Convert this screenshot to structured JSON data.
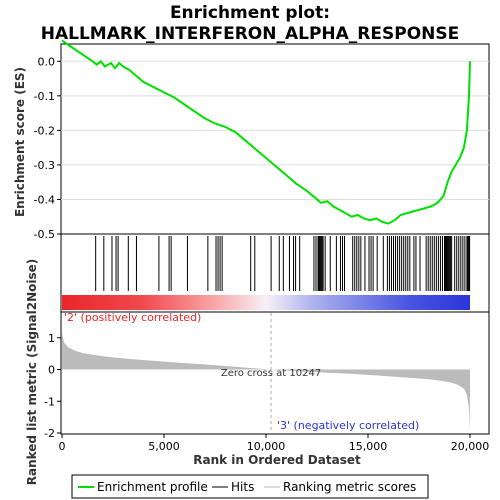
{
  "title_line1": "Enrichment plot:",
  "title_line2": "HALLMARK_INTERFERON_ALPHA_RESPONSE",
  "chart_data": {
    "type": "line",
    "x_range": [
      0,
      20000
    ],
    "x_ticks": [
      0,
      5000,
      10000,
      15000,
      20000
    ],
    "x_tick_labels": [
      "0",
      "5,000",
      "10,000",
      "15,000",
      "20,000"
    ],
    "xlabel": "Rank in Ordered Dataset",
    "es_panel": {
      "ylabel": "Enrichment score (ES)",
      "ylim": [
        -0.5,
        0.05
      ],
      "y_ticks": [
        0.0,
        -0.1,
        -0.2,
        -0.3,
        -0.4,
        -0.5
      ],
      "y_tick_labels": [
        "0.0",
        "-0.1",
        "-0.2",
        "-0.3",
        "-0.4",
        "-0.5"
      ],
      "color": "#00e000",
      "x": [
        0,
        500,
        1000,
        1500,
        1700,
        1900,
        2100,
        2400,
        2600,
        2800,
        3000,
        3300,
        3600,
        4000,
        4500,
        5000,
        5500,
        6000,
        6500,
        7000,
        7500,
        8000,
        8500,
        9000,
        9500,
        10000,
        10500,
        11000,
        11500,
        12000,
        12400,
        12700,
        13000,
        13300,
        13600,
        13900,
        14200,
        14500,
        14800,
        15100,
        15400,
        15700,
        16000,
        16300,
        16600,
        16900,
        17200,
        17500,
        17800,
        18100,
        18400,
        18700,
        18900,
        19100,
        19300,
        19500,
        19700,
        19850,
        19950,
        20000
      ],
      "values": [
        0.06,
        0.04,
        0.02,
        0.0,
        -0.01,
        0.0,
        -0.015,
        -0.005,
        -0.02,
        -0.005,
        -0.015,
        -0.025,
        -0.04,
        -0.06,
        -0.075,
        -0.09,
        -0.105,
        -0.125,
        -0.145,
        -0.165,
        -0.18,
        -0.19,
        -0.205,
        -0.23,
        -0.255,
        -0.28,
        -0.305,
        -0.33,
        -0.355,
        -0.375,
        -0.395,
        -0.41,
        -0.405,
        -0.42,
        -0.43,
        -0.44,
        -0.45,
        -0.445,
        -0.455,
        -0.46,
        -0.455,
        -0.465,
        -0.47,
        -0.46,
        -0.445,
        -0.44,
        -0.435,
        -0.43,
        -0.425,
        -0.42,
        -0.41,
        -0.39,
        -0.35,
        -0.32,
        -0.3,
        -0.28,
        -0.25,
        -0.2,
        -0.1,
        0.0
      ]
    },
    "hits": [
      1650,
      2050,
      2450,
      2650,
      2750,
      3250,
      3650,
      4750,
      5250,
      5350,
      6150,
      7150,
      7550,
      7650,
      7750,
      7850,
      9250,
      9450,
      10250,
      10650,
      10850,
      11150,
      11350,
      11450,
      11650,
      12350,
      12450,
      12550,
      12600,
      12650,
      12700,
      12750,
      12800,
      12900,
      13150,
      13450,
      13650,
      13750,
      13850,
      14250,
      14350,
      14450,
      14550,
      14650,
      14850,
      15050,
      15150,
      15250,
      15450,
      15750,
      15950,
      16050,
      16150,
      16250,
      16350,
      16450,
      16550,
      16650,
      16750,
      16850,
      16950,
      17050,
      17250,
      17350,
      17550,
      17850,
      17950,
      18050,
      18150,
      18250,
      18350,
      18450,
      18550,
      18650,
      18750,
      18800,
      18850,
      18900,
      18950,
      19000,
      19050,
      19100,
      19250,
      19350,
      19450,
      19550,
      19650,
      19750,
      19850,
      19900,
      19950,
      19980
    ],
    "metric_panel": {
      "ylabel": "Ranked list metric (Signal2Noise)",
      "ylim": [
        -2,
        2
      ],
      "y_ticks": [
        1,
        0,
        -1,
        -2
      ],
      "y_tick_labels": [
        "1",
        "0",
        "-1",
        "-2"
      ],
      "x": [
        0,
        100,
        300,
        600,
        1000,
        2000,
        3000,
        4000,
        5000,
        6000,
        7000,
        8000,
        9000,
        10000,
        10247,
        11000,
        12000,
        13000,
        14000,
        15000,
        16000,
        17000,
        18000,
        18500,
        19000,
        19400,
        19700,
        19850,
        19950,
        20000
      ],
      "values": [
        1.15,
        0.85,
        0.7,
        0.6,
        0.52,
        0.42,
        0.35,
        0.3,
        0.25,
        0.2,
        0.16,
        0.11,
        0.06,
        0.01,
        0.0,
        -0.03,
        -0.07,
        -0.1,
        -0.13,
        -0.17,
        -0.21,
        -0.26,
        -0.31,
        -0.35,
        -0.4,
        -0.48,
        -0.6,
        -0.8,
        -1.2,
        -1.9
      ]
    },
    "color_bar": {
      "label_left": "'2' (positively correlated)",
      "label_right": "'3' (negatively correlated)",
      "color_left": "#e8262a",
      "color_right": "#2a35d8"
    },
    "zero_cross_label": "Zero cross at 10247",
    "zero_cross": 10247,
    "legend": [
      {
        "label": "Enrichment profile",
        "color": "#00e000"
      },
      {
        "label": "Hits",
        "color": "#000000"
      },
      {
        "label": "Ranking metric scores",
        "color": "#bbbbbb"
      }
    ]
  }
}
